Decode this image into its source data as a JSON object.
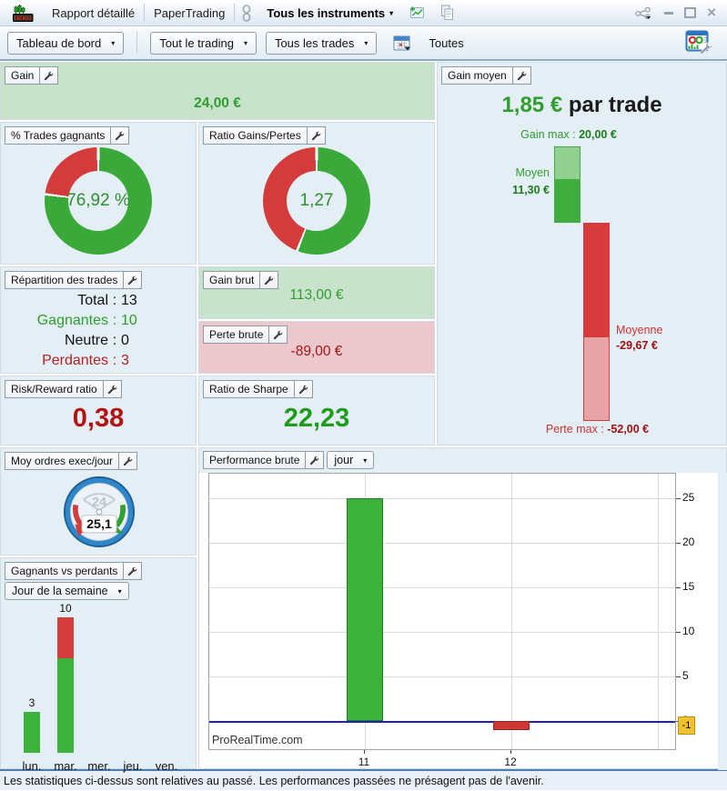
{
  "titlebar": {
    "demo_badge": "DEMO",
    "tab_report": "Rapport détaillé",
    "tab_papertrading": "PaperTrading",
    "instruments_dropdown": "Tous les instruments"
  },
  "toolbar": {
    "dashboard_dropdown": "Tableau de bord",
    "trading_scope_dropdown": "Tout le trading",
    "trades_filter_dropdown": "Tous les trades",
    "period_label": "Toutes"
  },
  "panels": {
    "gain": {
      "title": "Gain",
      "value": "24,00 €"
    },
    "gain_moyen": {
      "title": "Gain moyen",
      "value": "1,85 €",
      "suffix": " par trade"
    },
    "pct_trades_gagnants": {
      "title": "% Trades gagnants"
    },
    "ratio_gains_pertes": {
      "title": "Ratio Gains/Pertes"
    },
    "repartition": {
      "title": "Répartition des trades",
      "rows": [
        {
          "label": "Total",
          "value": "13"
        },
        {
          "label": "Gagnantes",
          "value": "10"
        },
        {
          "label": "Neutre",
          "value": "0"
        },
        {
          "label": "Perdantes",
          "value": "3"
        }
      ]
    },
    "gain_brut": {
      "title": "Gain brut",
      "value": "113,00 €"
    },
    "perte_brute": {
      "title": "Perte brute",
      "value": "-89,00 €"
    },
    "risk_reward": {
      "title": "Risk/Reward ratio",
      "value": "0,38"
    },
    "sharpe": {
      "title": "Ratio de Sharpe",
      "value": "22,23"
    },
    "moy_ordres": {
      "title": "Moy ordres exec/jour",
      "value": "25,1",
      "clock_label": "24"
    },
    "gagnants_perdants": {
      "title": "Gagnants vs perdants",
      "dropdown": "Jour de la semaine"
    },
    "performance": {
      "title": "Performance brute",
      "dropdown": "jour"
    }
  },
  "statusbar": {
    "text": "Les statistiques ci-dessus sont relatives au passé. Les performances passées ne présagent pas de l'avenir."
  },
  "chart_data": [
    {
      "id": "pct_trades_gagnants",
      "type": "pie",
      "title": "% Trades gagnants",
      "center_label": "76,92 %",
      "segments": [
        {
          "name": "gagnants",
          "pct": 76.92,
          "color": "#3aa93a"
        },
        {
          "name": "perdants",
          "pct": 23.08,
          "color": "#d43b3b"
        }
      ]
    },
    {
      "id": "ratio_gains_pertes",
      "type": "pie",
      "title": "Ratio Gains/Pertes",
      "center_label": "1,27",
      "segments": [
        {
          "name": "gains",
          "pct": 55.9,
          "color": "#3aa93a"
        },
        {
          "name": "pertes",
          "pct": 44.1,
          "color": "#d43b3b"
        }
      ]
    },
    {
      "id": "gain_moyen",
      "type": "bar",
      "title": "Gain moyen (waterfall, EUR)",
      "gain_max": 20.0,
      "gain_moyen": 11.3,
      "perte_moyenne": -29.67,
      "perte_max": -52.0,
      "labels": {
        "gain_max_label": "Gain max :",
        "gain_max_value": "20,00 €",
        "moyen_label": "Moyen",
        "moyen_value": "11,30 €",
        "moyenne_label": "Moyenne",
        "moyenne_value": "-29,67 €",
        "perte_max_label": "Perte max :",
        "perte_max_value": "-52,00 €"
      },
      "colors": {
        "gain_light": "#92d092",
        "gain_dark": "#3fae3f",
        "loss_dark": "#d83b3b",
        "loss_light": "#e8a3a6"
      }
    },
    {
      "id": "gagnants_vs_perdants",
      "type": "bar",
      "stacked": true,
      "title": "Gagnants vs perdants (Jour de la semaine)",
      "categories": [
        "lun.",
        "mar.",
        "mer.",
        "jeu.",
        "ven."
      ],
      "series": [
        {
          "name": "gagnants",
          "color": "#3cb13c",
          "values": [
            3,
            7,
            0,
            0,
            0
          ]
        },
        {
          "name": "perdants",
          "color": "#d43b3b",
          "values": [
            0,
            3,
            0,
            0,
            0
          ]
        }
      ],
      "total_labels": [
        "3",
        "10",
        "",
        "",
        ""
      ]
    },
    {
      "id": "performance_brute",
      "type": "bar",
      "title": "Performance brute (jour)",
      "x_labels": [
        "11",
        "12"
      ],
      "values": [
        25,
        -1
      ],
      "bar_colors": [
        "#3cb13c",
        "#cf3636"
      ],
      "yticks": [
        0,
        5,
        10,
        15,
        20,
        25
      ],
      "ylim": [
        -3.2,
        27.7
      ],
      "grid": true,
      "zero_line_color": "#2121b5",
      "current_value_label": "-1",
      "watermark": "ProRealTime.com"
    }
  ]
}
